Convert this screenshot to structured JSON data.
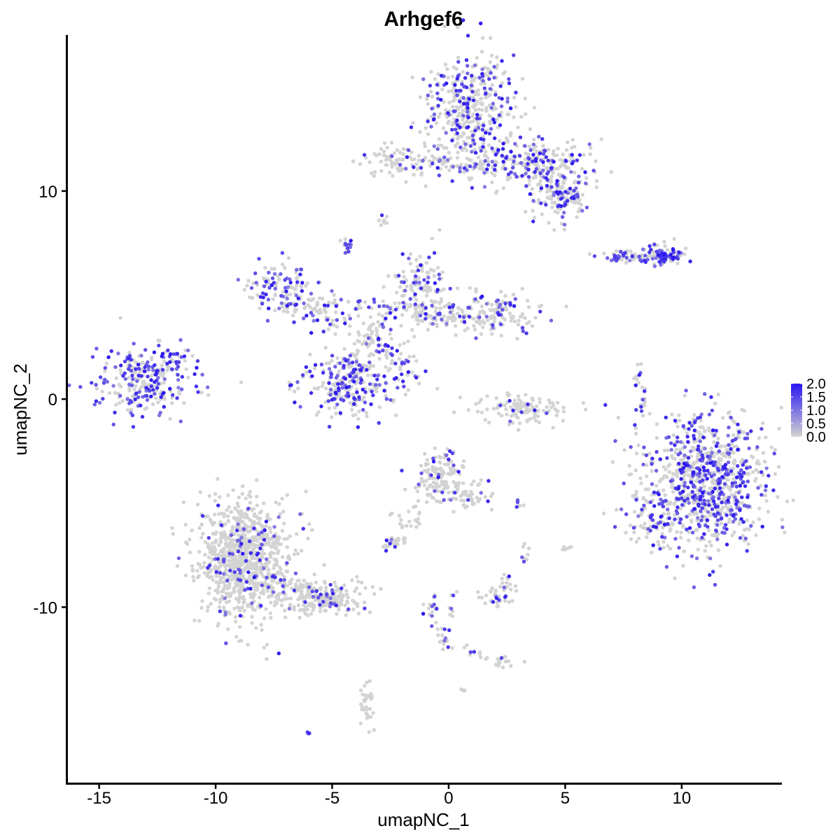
{
  "chart_data": {
    "type": "scatter",
    "title": "Arhgef6",
    "xlabel": "umapNC_1",
    "ylabel": "umapNC_2",
    "xlim": [
      -16.4,
      14.3
    ],
    "ylim": [
      -18.5,
      17.5
    ],
    "x_ticks": [
      -15,
      -10,
      -5,
      0,
      5,
      10
    ],
    "x_tick_labels": [
      "-15",
      "-10",
      "-5",
      "0",
      "5",
      "10"
    ],
    "y_ticks": [
      -10,
      0,
      10
    ],
    "y_tick_labels": [
      "-10",
      "0",
      "10"
    ],
    "grid": false,
    "legend_position": "right",
    "color_scale": {
      "low_color": "#d3d3d3",
      "high_color": "#2a16f0",
      "min": 0.0,
      "max": 2.0,
      "breaks": [
        0.0,
        0.5,
        1.0,
        1.5,
        2.0
      ],
      "break_labels": [
        "0.0",
        "0.5",
        "1.0",
        "1.5",
        "2.0"
      ]
    },
    "clusters": [
      {
        "cx": 1.0,
        "cy": 14.0,
        "sx": 0.9,
        "sy": 1.4,
        "n": 420,
        "expr_frac": 0.35
      },
      {
        "cx": 3.8,
        "cy": 11.3,
        "sx": 1.1,
        "sy": 0.6,
        "n": 220,
        "expr_frac": 0.3
      },
      {
        "cx": 4.8,
        "cy": 9.8,
        "sx": 0.7,
        "sy": 0.6,
        "n": 140,
        "expr_frac": 0.3
      },
      {
        "cx": -1.9,
        "cy": 11.5,
        "sx": 0.9,
        "sy": 0.4,
        "n": 90,
        "expr_frac": 0.2
      },
      {
        "cx": 1.3,
        "cy": 11.2,
        "sx": 0.7,
        "sy": 0.25,
        "n": 40,
        "expr_frac": 0.2
      },
      {
        "cx": -2.8,
        "cy": 8.6,
        "sx": 0.12,
        "sy": 0.12,
        "n": 8,
        "expr_frac": 0.4
      },
      {
        "cx": -4.4,
        "cy": 7.4,
        "sx": 0.12,
        "sy": 0.18,
        "n": 14,
        "expr_frac": 0.6
      },
      {
        "cx": 9.3,
        "cy": 6.9,
        "sx": 0.45,
        "sy": 0.25,
        "n": 90,
        "expr_frac": 0.55
      },
      {
        "cx": 7.6,
        "cy": 6.8,
        "sx": 0.6,
        "sy": 0.12,
        "n": 35,
        "expr_frac": 0.3
      },
      {
        "cx": -13.1,
        "cy": 0.9,
        "sx": 1.1,
        "sy": 0.8,
        "n": 260,
        "expr_frac": 0.5
      },
      {
        "cx": -7.2,
        "cy": 5.3,
        "sx": 0.7,
        "sy": 0.6,
        "n": 110,
        "expr_frac": 0.55
      },
      {
        "cx": -5.4,
        "cy": 4.2,
        "sx": 0.8,
        "sy": 0.5,
        "n": 70,
        "expr_frac": 0.35
      },
      {
        "cx": -1.2,
        "cy": 5.5,
        "sx": 0.6,
        "sy": 0.8,
        "n": 90,
        "expr_frac": 0.35
      },
      {
        "cx": 1.8,
        "cy": 4.2,
        "sx": 1.0,
        "sy": 0.5,
        "n": 160,
        "expr_frac": 0.25
      },
      {
        "cx": -0.8,
        "cy": 4.0,
        "sx": 1.0,
        "sy": 0.3,
        "n": 60,
        "expr_frac": 0.15
      },
      {
        "cx": -3.2,
        "cy": 2.7,
        "sx": 0.6,
        "sy": 0.5,
        "n": 50,
        "expr_frac": 0.15
      },
      {
        "cx": -4.3,
        "cy": 0.8,
        "sx": 1.0,
        "sy": 0.8,
        "n": 260,
        "expr_frac": 0.5
      },
      {
        "cx": -1.9,
        "cy": 1.1,
        "sx": 0.5,
        "sy": 0.5,
        "n": 18,
        "expr_frac": 0.5
      },
      {
        "cx": 3.2,
        "cy": -0.5,
        "sx": 0.9,
        "sy": 0.35,
        "n": 110,
        "expr_frac": 0.08
      },
      {
        "cx": 8.2,
        "cy": 0.2,
        "sx": 0.15,
        "sy": 0.7,
        "n": 25,
        "expr_frac": 0.35
      },
      {
        "cx": 11.0,
        "cy": -4.0,
        "sx": 1.3,
        "sy": 1.6,
        "n": 900,
        "expr_frac": 0.38
      },
      {
        "cx": 9.0,
        "cy": -6.0,
        "sx": 0.6,
        "sy": 0.6,
        "n": 70,
        "expr_frac": 0.3
      },
      {
        "cx": -0.4,
        "cy": -3.6,
        "sx": 0.55,
        "sy": 0.5,
        "n": 130,
        "expr_frac": 0.12
      },
      {
        "cx": 0.8,
        "cy": -4.7,
        "sx": 0.6,
        "sy": 0.35,
        "n": 60,
        "expr_frac": 0.05
      },
      {
        "cx": -2.5,
        "cy": -6.9,
        "sx": 0.25,
        "sy": 0.18,
        "n": 28,
        "expr_frac": 0.2
      },
      {
        "cx": -1.7,
        "cy": -5.8,
        "sx": 0.4,
        "sy": 0.5,
        "n": 25,
        "expr_frac": 0.05
      },
      {
        "cx": -8.8,
        "cy": -7.7,
        "sx": 1.0,
        "sy": 1.4,
        "n": 900,
        "expr_frac": 0.1
      },
      {
        "cx": -5.5,
        "cy": -9.5,
        "sx": 1.1,
        "sy": 0.4,
        "n": 200,
        "expr_frac": 0.12
      },
      {
        "cx": 2.2,
        "cy": -9.5,
        "sx": 0.4,
        "sy": 0.3,
        "n": 35,
        "expr_frac": 0.1
      },
      {
        "cx": 2.5,
        "cy": -8.7,
        "sx": 0.12,
        "sy": 0.2,
        "n": 10,
        "expr_frac": 0.1
      },
      {
        "cx": 3.3,
        "cy": -7.5,
        "sx": 0.1,
        "sy": 0.3,
        "n": 8,
        "expr_frac": 0.2
      },
      {
        "cx": 3.0,
        "cy": -5.0,
        "sx": 0.12,
        "sy": 0.12,
        "n": 6,
        "expr_frac": 0.5
      },
      {
        "cx": 5.0,
        "cy": -7.3,
        "sx": 0.1,
        "sy": 0.18,
        "n": 8,
        "expr_frac": 0.0
      },
      {
        "cx": -0.7,
        "cy": -10.0,
        "sx": 0.15,
        "sy": 0.4,
        "n": 18,
        "expr_frac": 0.5
      },
      {
        "cx": -0.2,
        "cy": -11.5,
        "sx": 0.2,
        "sy": 0.4,
        "n": 16,
        "expr_frac": 0.4
      },
      {
        "cx": 2.3,
        "cy": -12.6,
        "sx": 0.3,
        "sy": 0.15,
        "n": 18,
        "expr_frac": 0.15
      },
      {
        "cx": -3.5,
        "cy": -14.7,
        "sx": 0.15,
        "sy": 0.5,
        "n": 35,
        "expr_frac": 0.0
      },
      {
        "cx": 0.6,
        "cy": -13.9,
        "sx": 0.1,
        "sy": 0.1,
        "n": 4,
        "expr_frac": 0.0
      },
      {
        "cx": -6.0,
        "cy": -16.0,
        "sx": 0.1,
        "sy": 0.07,
        "n": 3,
        "expr_frac": 1.0
      }
    ],
    "bridges": [
      {
        "x1": -6.0,
        "y1": 4.6,
        "x2": 1.5,
        "y2": 4.3,
        "n": 60,
        "expr_frac": 0.25
      },
      {
        "x1": -4.2,
        "y1": 2.0,
        "x2": -1.3,
        "y2": 5.8,
        "n": 40,
        "expr_frac": 0.2
      },
      {
        "x1": -3.0,
        "y1": 2.7,
        "x2": -1.2,
        "y2": 0.8,
        "n": 22,
        "expr_frac": 0.4
      },
      {
        "x1": 0.3,
        "y1": -9.2,
        "x2": 0.0,
        "y2": -10.8,
        "n": 8,
        "expr_frac": 0.6
      },
      {
        "x1": 0.5,
        "y1": -11.9,
        "x2": 1.8,
        "y2": -12.3,
        "n": 10,
        "expr_frac": 0.1
      },
      {
        "x1": -9.0,
        "y1": -7.8,
        "x2": -4.0,
        "y2": -10.2,
        "n": 80,
        "expr_frac": 0.15
      },
      {
        "x1": -0.9,
        "y1": 11.4,
        "x2": 0.6,
        "y2": 11.1,
        "n": 20,
        "expr_frac": 0.15
      },
      {
        "x1": 7.0,
        "y1": 6.9,
        "x2": 9.0,
        "y2": 6.9,
        "n": 30,
        "expr_frac": 0.4
      },
      {
        "x1": -12.5,
        "y1": 1.3,
        "x2": -11.0,
        "y2": 2.6,
        "n": 20,
        "expr_frac": 0.5
      }
    ]
  }
}
